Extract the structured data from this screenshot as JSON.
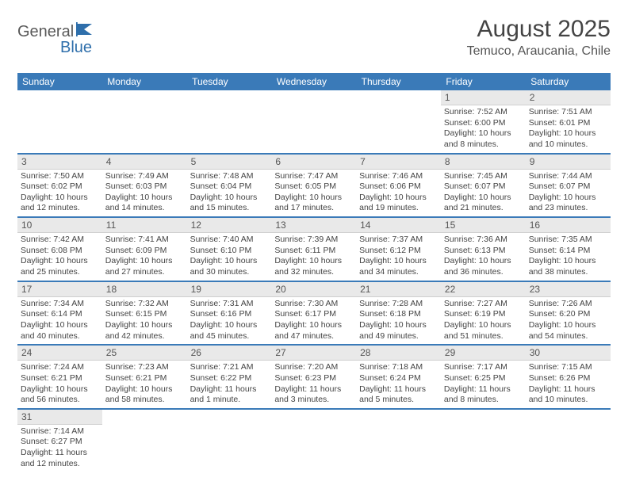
{
  "logo": {
    "text1": "General",
    "text2": "Blue",
    "icon_color": "#2f6fab"
  },
  "title": "August 2025",
  "location": "Temuco, Araucania, Chile",
  "colors": {
    "header_bg": "#3a7ab8",
    "header_fg": "#ffffff",
    "row_divider": "#3a7ab8",
    "daynum_bg": "#e9e9e9",
    "text": "#444444"
  },
  "day_headers": [
    "Sunday",
    "Monday",
    "Tuesday",
    "Wednesday",
    "Thursday",
    "Friday",
    "Saturday"
  ],
  "weeks": [
    [
      null,
      null,
      null,
      null,
      null,
      {
        "n": "1",
        "sunrise": "7:52 AM",
        "sunset": "6:00 PM",
        "daylight": "10 hours and 8 minutes."
      },
      {
        "n": "2",
        "sunrise": "7:51 AM",
        "sunset": "6:01 PM",
        "daylight": "10 hours and 10 minutes."
      }
    ],
    [
      {
        "n": "3",
        "sunrise": "7:50 AM",
        "sunset": "6:02 PM",
        "daylight": "10 hours and 12 minutes."
      },
      {
        "n": "4",
        "sunrise": "7:49 AM",
        "sunset": "6:03 PM",
        "daylight": "10 hours and 14 minutes."
      },
      {
        "n": "5",
        "sunrise": "7:48 AM",
        "sunset": "6:04 PM",
        "daylight": "10 hours and 15 minutes."
      },
      {
        "n": "6",
        "sunrise": "7:47 AM",
        "sunset": "6:05 PM",
        "daylight": "10 hours and 17 minutes."
      },
      {
        "n": "7",
        "sunrise": "7:46 AM",
        "sunset": "6:06 PM",
        "daylight": "10 hours and 19 minutes."
      },
      {
        "n": "8",
        "sunrise": "7:45 AM",
        "sunset": "6:07 PM",
        "daylight": "10 hours and 21 minutes."
      },
      {
        "n": "9",
        "sunrise": "7:44 AM",
        "sunset": "6:07 PM",
        "daylight": "10 hours and 23 minutes."
      }
    ],
    [
      {
        "n": "10",
        "sunrise": "7:42 AM",
        "sunset": "6:08 PM",
        "daylight": "10 hours and 25 minutes."
      },
      {
        "n": "11",
        "sunrise": "7:41 AM",
        "sunset": "6:09 PM",
        "daylight": "10 hours and 27 minutes."
      },
      {
        "n": "12",
        "sunrise": "7:40 AM",
        "sunset": "6:10 PM",
        "daylight": "10 hours and 30 minutes."
      },
      {
        "n": "13",
        "sunrise": "7:39 AM",
        "sunset": "6:11 PM",
        "daylight": "10 hours and 32 minutes."
      },
      {
        "n": "14",
        "sunrise": "7:37 AM",
        "sunset": "6:12 PM",
        "daylight": "10 hours and 34 minutes."
      },
      {
        "n": "15",
        "sunrise": "7:36 AM",
        "sunset": "6:13 PM",
        "daylight": "10 hours and 36 minutes."
      },
      {
        "n": "16",
        "sunrise": "7:35 AM",
        "sunset": "6:14 PM",
        "daylight": "10 hours and 38 minutes."
      }
    ],
    [
      {
        "n": "17",
        "sunrise": "7:34 AM",
        "sunset": "6:14 PM",
        "daylight": "10 hours and 40 minutes."
      },
      {
        "n": "18",
        "sunrise": "7:32 AM",
        "sunset": "6:15 PM",
        "daylight": "10 hours and 42 minutes."
      },
      {
        "n": "19",
        "sunrise": "7:31 AM",
        "sunset": "6:16 PM",
        "daylight": "10 hours and 45 minutes."
      },
      {
        "n": "20",
        "sunrise": "7:30 AM",
        "sunset": "6:17 PM",
        "daylight": "10 hours and 47 minutes."
      },
      {
        "n": "21",
        "sunrise": "7:28 AM",
        "sunset": "6:18 PM",
        "daylight": "10 hours and 49 minutes."
      },
      {
        "n": "22",
        "sunrise": "7:27 AM",
        "sunset": "6:19 PM",
        "daylight": "10 hours and 51 minutes."
      },
      {
        "n": "23",
        "sunrise": "7:26 AM",
        "sunset": "6:20 PM",
        "daylight": "10 hours and 54 minutes."
      }
    ],
    [
      {
        "n": "24",
        "sunrise": "7:24 AM",
        "sunset": "6:21 PM",
        "daylight": "10 hours and 56 minutes."
      },
      {
        "n": "25",
        "sunrise": "7:23 AM",
        "sunset": "6:21 PM",
        "daylight": "10 hours and 58 minutes."
      },
      {
        "n": "26",
        "sunrise": "7:21 AM",
        "sunset": "6:22 PM",
        "daylight": "11 hours and 1 minute."
      },
      {
        "n": "27",
        "sunrise": "7:20 AM",
        "sunset": "6:23 PM",
        "daylight": "11 hours and 3 minutes."
      },
      {
        "n": "28",
        "sunrise": "7:18 AM",
        "sunset": "6:24 PM",
        "daylight": "11 hours and 5 minutes."
      },
      {
        "n": "29",
        "sunrise": "7:17 AM",
        "sunset": "6:25 PM",
        "daylight": "11 hours and 8 minutes."
      },
      {
        "n": "30",
        "sunrise": "7:15 AM",
        "sunset": "6:26 PM",
        "daylight": "11 hours and 10 minutes."
      }
    ],
    [
      {
        "n": "31",
        "sunrise": "7:14 AM",
        "sunset": "6:27 PM",
        "daylight": "11 hours and 12 minutes."
      },
      null,
      null,
      null,
      null,
      null,
      null
    ]
  ],
  "labels": {
    "sunrise": "Sunrise:",
    "sunset": "Sunset:",
    "daylight": "Daylight:"
  }
}
